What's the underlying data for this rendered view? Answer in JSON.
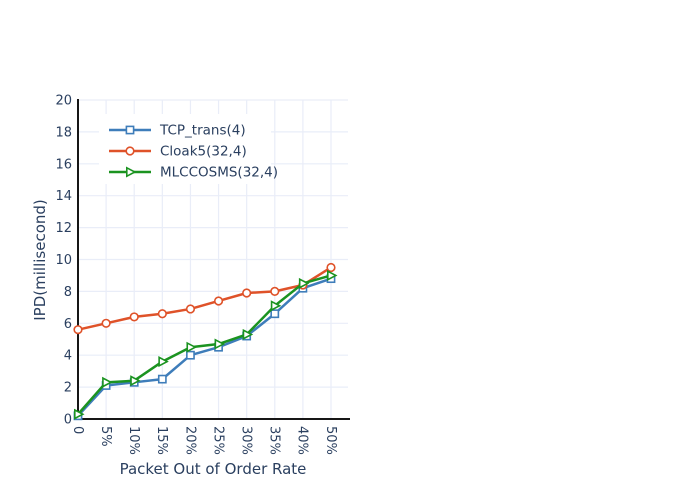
{
  "chart_data": {
    "type": "line",
    "title": "",
    "xlabel": "Packet Out of Order Rate",
    "ylabel": "IPD(millisecond)",
    "categories": [
      "0",
      "5%",
      "10%",
      "15%",
      "20%",
      "25%",
      "30%",
      "35%",
      "40%",
      "50%"
    ],
    "series": [
      {
        "name": "TCP_trans(4)",
        "marker": "square",
        "color": "#3E7DBA",
        "values": [
          0.2,
          2.1,
          2.3,
          2.5,
          4.0,
          4.5,
          5.2,
          6.6,
          8.2,
          8.8
        ]
      },
      {
        "name": "Cloak5(32,4)",
        "marker": "circle",
        "color": "#DF5229",
        "values": [
          5.6,
          6.0,
          6.4,
          6.6,
          6.9,
          7.4,
          7.9,
          8.0,
          8.4,
          9.5
        ]
      },
      {
        "name": "MLCCOSMS(32,4)",
        "marker": "triangle-right",
        "color": "#1B9320",
        "values": [
          0.3,
          2.3,
          2.4,
          3.6,
          4.5,
          4.7,
          5.3,
          7.1,
          8.5,
          9.0
        ]
      }
    ],
    "ylim": [
      0,
      20
    ],
    "ytick_step": 2,
    "yticks": [
      "0",
      "2",
      "4",
      "6",
      "8",
      "10",
      "12",
      "14",
      "16",
      "18",
      "20"
    ],
    "grid": true,
    "xtick_rotation_deg": 90,
    "legend_position": "top-left-inside"
  },
  "style": {
    "text_color": "#2a3f5f",
    "grid_color": "#e9edf8",
    "axis_color": "#161616",
    "marker_fill": "#ffffff",
    "background": "#ffffff"
  }
}
